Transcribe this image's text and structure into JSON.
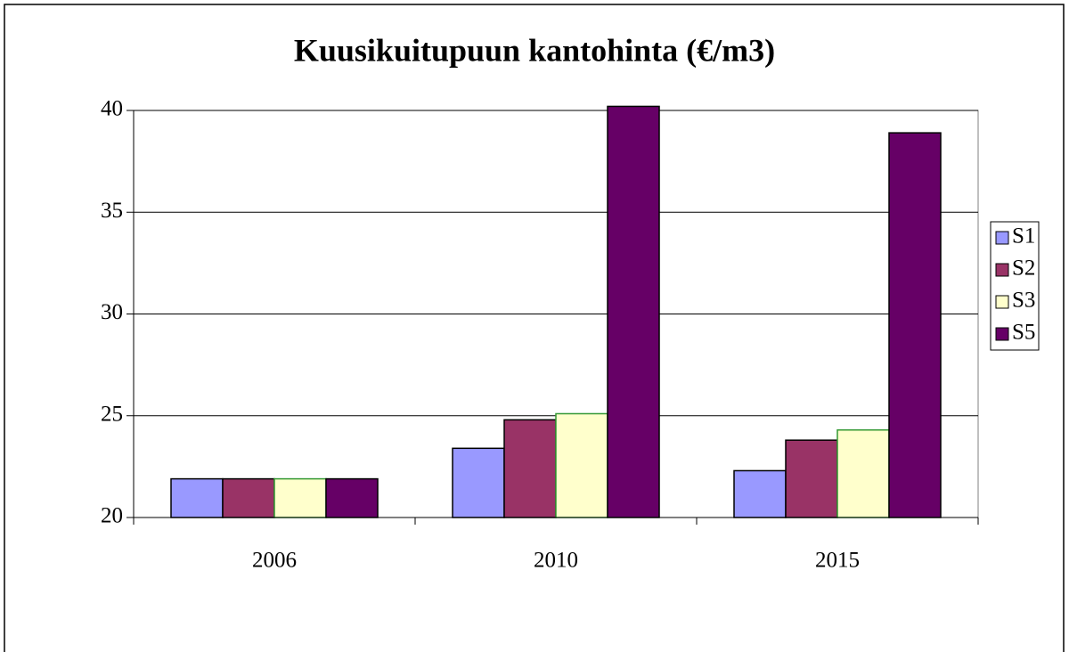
{
  "chart_data": {
    "type": "bar",
    "title": "Kuusikuitupuun kantohinta (€/m3)",
    "categories": [
      "2006",
      "2010",
      "2015"
    ],
    "series": [
      {
        "name": "S1",
        "color": "#9999ff",
        "values": [
          21.9,
          23.4,
          22.3
        ]
      },
      {
        "name": "S2",
        "color": "#993366",
        "values": [
          21.9,
          24.8,
          23.8
        ]
      },
      {
        "name": "S3",
        "color": "#ffffcc",
        "values": [
          21.9,
          25.1,
          24.3
        ]
      },
      {
        "name": "S5",
        "color": "#660066",
        "values": [
          21.9,
          40.2,
          38.9
        ]
      }
    ],
    "ylim": [
      20,
      40
    ],
    "yticks": [
      20,
      25,
      30,
      35,
      40
    ],
    "grid": true,
    "legend": "right"
  }
}
